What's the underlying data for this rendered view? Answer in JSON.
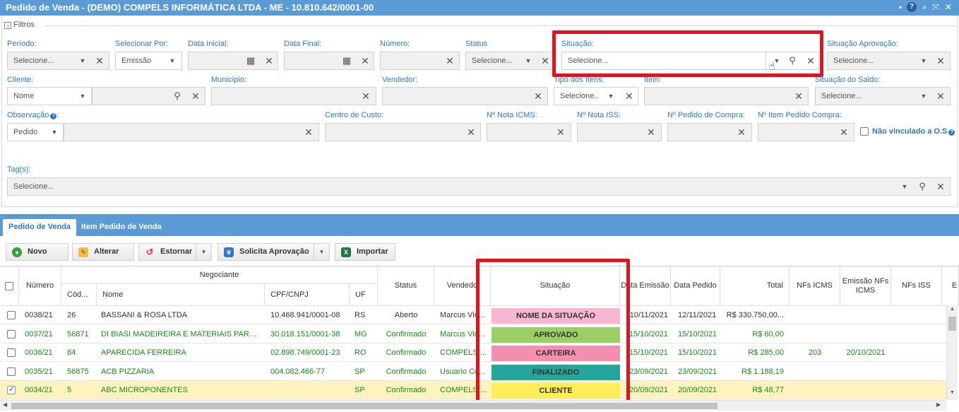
{
  "window": {
    "title": "Pedido de Venda - (DEMO) COMPELS INFORMÁTICA LTDA - ME - 10.810.642/0001-00"
  },
  "filters": {
    "legend": "Filtros",
    "periodo": {
      "label": "Período:",
      "value": "Selecione..."
    },
    "selecionar_por": {
      "label": "Selecionar Por:",
      "value": "Emissão"
    },
    "data_inicial": {
      "label": "Data Inicial:"
    },
    "data_final": {
      "label": "Data Final:"
    },
    "numero": {
      "label": "Número:"
    },
    "status": {
      "label": "Status",
      "value": "Selecione..."
    },
    "situacao": {
      "label": "Situação:",
      "value": "Selecione..."
    },
    "situacao_aprovacao": {
      "label": "Situação Aprovação:",
      "value": "Selecione..."
    },
    "cliente": {
      "label": "Cliente:",
      "mode": "Nome"
    },
    "municipio": {
      "label": "Município:"
    },
    "vendedor": {
      "label": "Vendedor:"
    },
    "tipo_itens": {
      "label": "Tipo dos Itens:",
      "value": "Selecione.."
    },
    "item": {
      "label": "Item:"
    },
    "situacao_saldo": {
      "label": "Situação do Saldo:",
      "value": "Selecione..."
    },
    "observacao": {
      "label": "Observação",
      "mode": "Pedido"
    },
    "centro_custo": {
      "label": "Centro de Custo:"
    },
    "nota_icms": {
      "label": "Nº Nota ICMS:"
    },
    "nota_iss": {
      "label": "Nº Nota ISS:"
    },
    "pedido_compra": {
      "label": "Nº Pedido de Compra:"
    },
    "item_pedido_compra": {
      "label": "Nº Item Pedido Compra:"
    },
    "nao_vinculado": {
      "label": "Não vinculado a O.S"
    },
    "tags": {
      "label": "Tag(s):",
      "value": "Selecione..."
    }
  },
  "tabs": [
    {
      "label": "Pedido de Venda"
    },
    {
      "label": "Item Pedido de Venda"
    }
  ],
  "toolbar": {
    "novo": "Novo",
    "alterar": "Alterar",
    "estornar": "Estornar",
    "solicita": "Solicita Aprovação",
    "importar": "Importar"
  },
  "grid": {
    "headers": {
      "numero": "Número",
      "negociante": "Negociante",
      "cod": "Cód...",
      "nome": "Nome",
      "cpf": "CPF/CNPJ",
      "uf": "UF",
      "status": "Status",
      "vendedor": "Vendedo",
      "situacao": "Situação",
      "data_emissao": "Data Emissão",
      "data_pedido": "Data Pedido",
      "total": "Total",
      "nfs_icms": "NFs ICMS",
      "emissao_nfs_icms": "Emissão NFs ICMS",
      "nfs_iss": "NFs ISS",
      "extra": "E"
    },
    "rows": [
      {
        "numero": "0038/21",
        "cod": "26",
        "nome": "BASSANI & ROSA LTDA",
        "cpf": "10.468.941/0001-08",
        "uf": "RS",
        "status": "Aberto",
        "vendedor": "Marcus Vin...",
        "situacao": "NOME DA SITUAÇÃO",
        "sit_color": "#f7b6d2",
        "data_emissao": "10/11/2021",
        "data_pedido": "12/11/2021",
        "total": "R$ 330.750,00...",
        "nfs_icms": "",
        "emissao_nfs": "",
        "checked": false,
        "color": "black"
      },
      {
        "numero": "0037/21",
        "cod": "56871",
        "nome": "DI BIASI MADEIREIRA E MATERIAIS PARA ...",
        "cpf": "30.018.151/0001-38",
        "uf": "MG",
        "status": "Confirmado",
        "vendedor": "Marcus Vin...",
        "situacao": "APROVADO",
        "sit_color": "#9bcf63",
        "data_emissao": "15/10/2021",
        "data_pedido": "15/10/2021",
        "total": "R$ 60,00",
        "nfs_icms": "",
        "emissao_nfs": "",
        "checked": false,
        "color": "green"
      },
      {
        "numero": "0036/21",
        "cod": "84",
        "nome": "APARECIDA FERREIRA",
        "cpf": "02.898.749/0001-23",
        "uf": "RO",
        "status": "Confirmado",
        "vendedor": "COMPELS ...",
        "situacao": "CARTEIRA",
        "sit_color": "#f48fb1",
        "data_emissao": "15/10/2021",
        "data_pedido": "15/10/2021",
        "total": "R$ 285,00",
        "nfs_icms": "203",
        "emissao_nfs": "20/10/2021",
        "checked": false,
        "color": "green"
      },
      {
        "numero": "0035/21",
        "cod": "56875",
        "nome": "ACB PIZZARIA",
        "cpf": "004.082.466-77",
        "uf": "SP",
        "status": "Confirmado",
        "vendedor": "Usuario Co...",
        "situacao": "FINALIZADO",
        "sit_color": "#26a69a",
        "data_emissao": "23/09/2021",
        "data_pedido": "23/09/2021",
        "total": "R$ 1.188,19",
        "nfs_icms": "",
        "emissao_nfs": "",
        "checked": false,
        "color": "green"
      },
      {
        "numero": "0034/21",
        "cod": "5",
        "nome": "ABC MICROPONENTES",
        "cpf": "",
        "uf": "SP",
        "status": "Confirmado",
        "vendedor": "COMPELS ...",
        "situacao": "CLIENTE",
        "sit_color": "#ffee58",
        "data_emissao": "20/09/2021",
        "data_pedido": "20/09/2021",
        "total": "R$ 48,77",
        "nfs_icms": "",
        "emissao_nfs": "",
        "checked": true,
        "color": "green"
      }
    ]
  },
  "colors": {
    "header_blue": "#5b9bd5",
    "label_blue": "#2e78c4",
    "highlight_red": "#e0141e",
    "selected_row": "#fdf3c0"
  }
}
